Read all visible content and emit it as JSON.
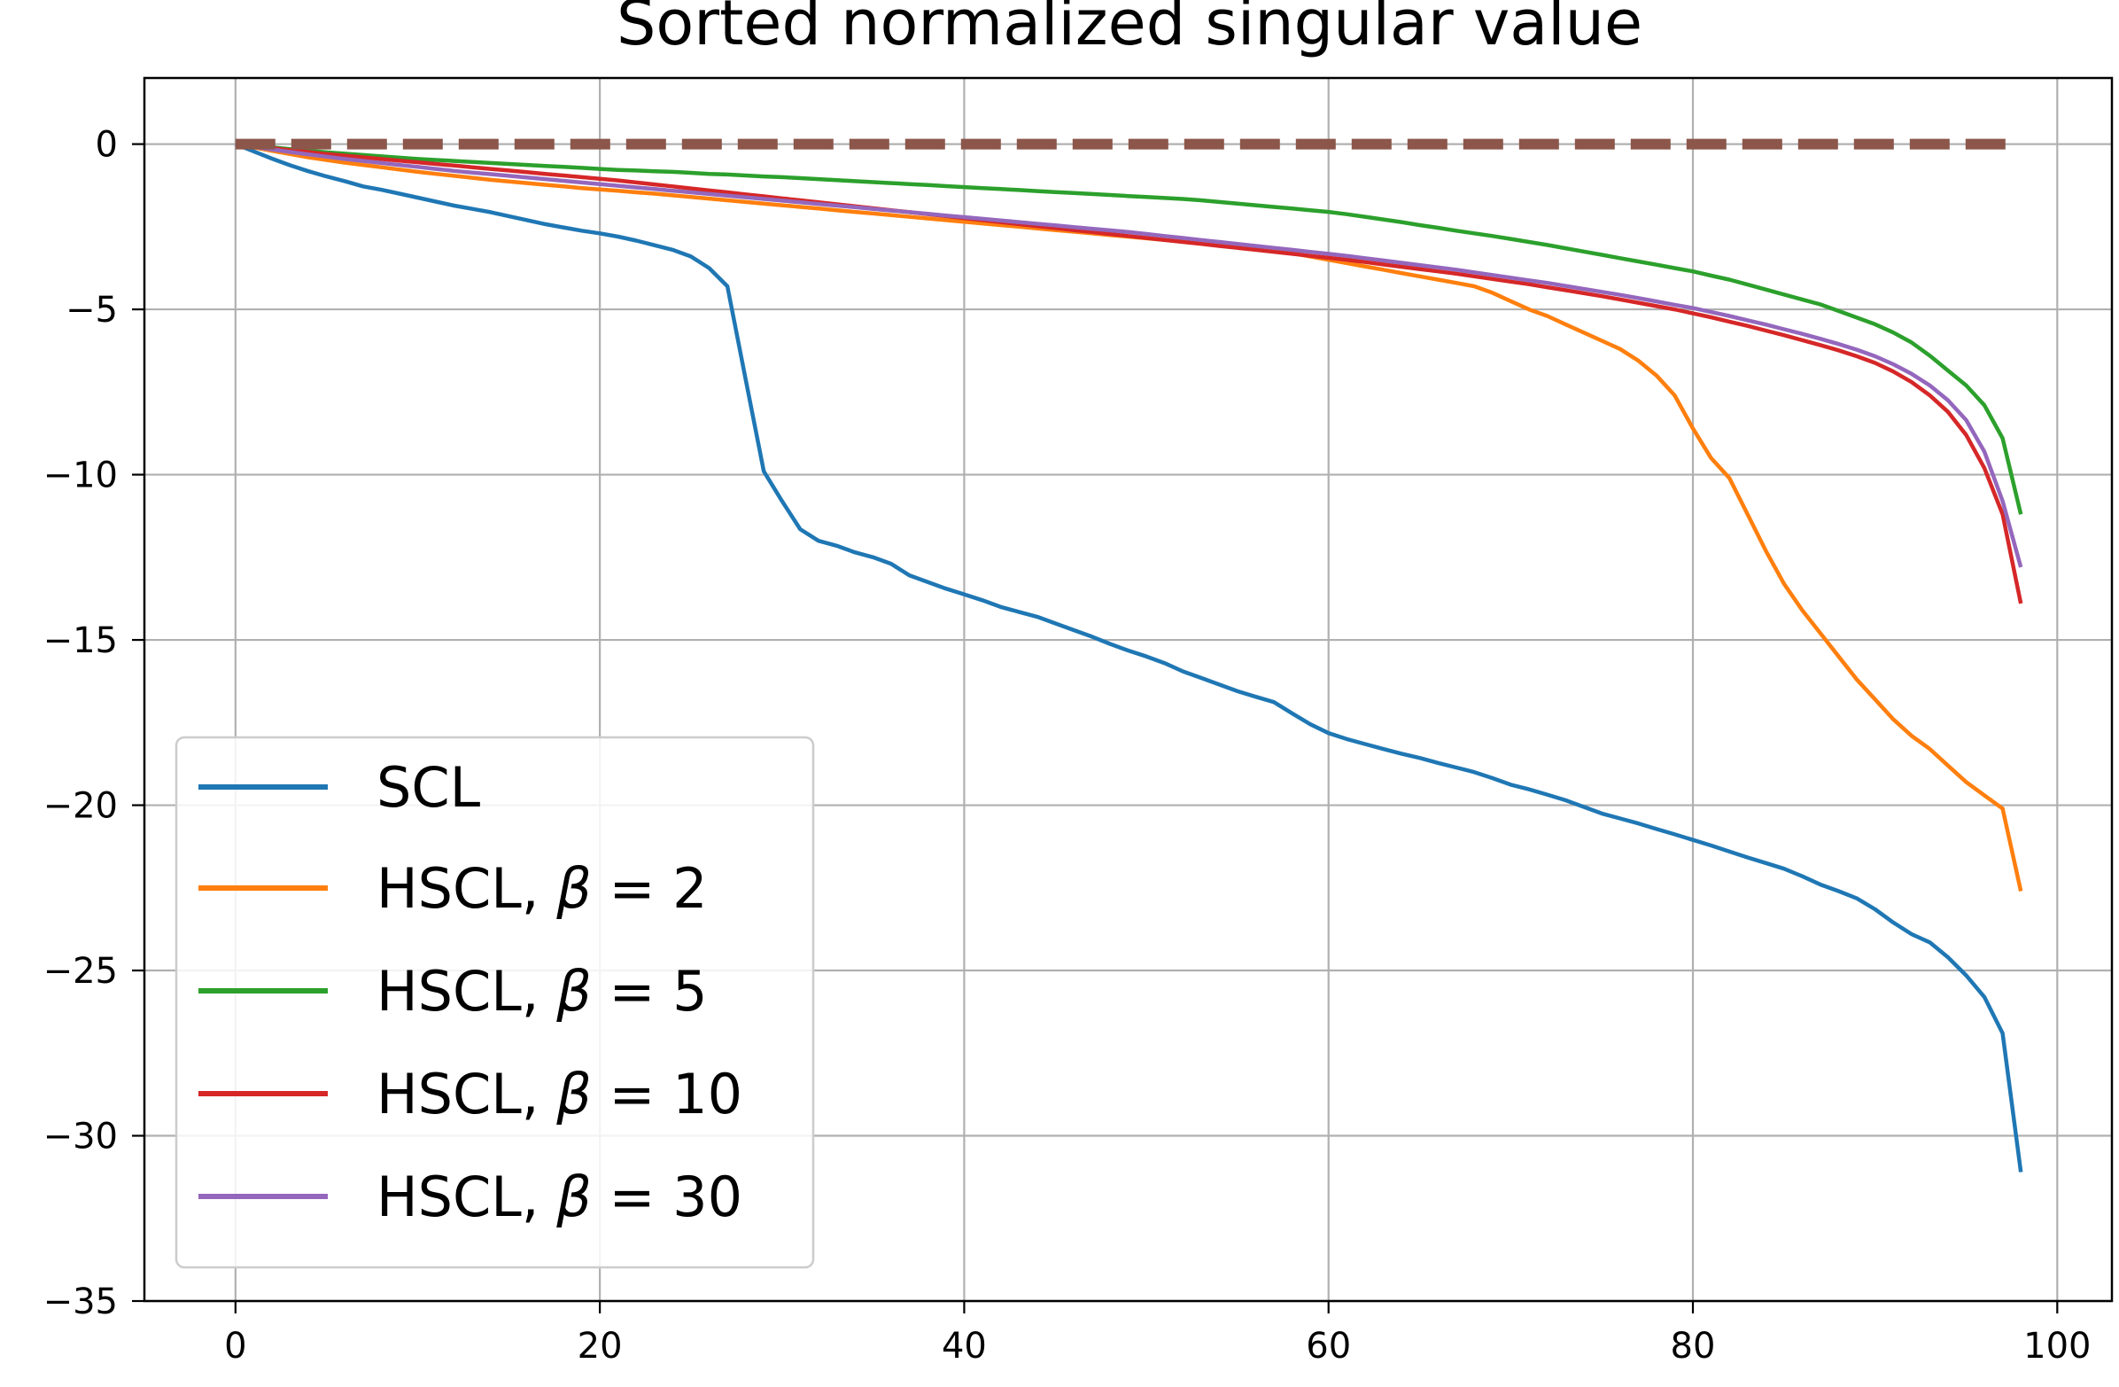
{
  "chart_data": {
    "type": "line",
    "title": "Sorted normalized singular value",
    "xlabel": "",
    "ylabel": "",
    "xlim": [
      -5,
      103
    ],
    "ylim": [
      -35,
      2
    ],
    "xticks": [
      0,
      20,
      40,
      60,
      80,
      100
    ],
    "yticks": [
      0,
      -5,
      -10,
      -15,
      -20,
      -25,
      -30,
      -35
    ],
    "grid": true,
    "legend_position": "lower-left",
    "x": [
      0,
      1,
      2,
      3,
      4,
      5,
      6,
      7,
      8,
      9,
      10,
      11,
      12,
      13,
      14,
      15,
      16,
      17,
      18,
      19,
      20,
      21,
      22,
      23,
      24,
      25,
      26,
      27,
      28,
      29,
      30,
      31,
      32,
      33,
      34,
      35,
      36,
      37,
      38,
      39,
      40,
      41,
      42,
      43,
      44,
      45,
      46,
      47,
      48,
      49,
      50,
      51,
      52,
      53,
      54,
      55,
      56,
      57,
      58,
      59,
      60,
      61,
      62,
      63,
      64,
      65,
      66,
      67,
      68,
      69,
      70,
      71,
      72,
      73,
      74,
      75,
      76,
      77,
      78,
      79,
      80,
      81,
      82,
      83,
      84,
      85,
      86,
      87,
      88,
      89,
      90,
      91,
      92,
      93,
      94,
      95,
      96,
      97,
      98
    ],
    "series": [
      {
        "name": "SCL",
        "color": "#1f77b4",
        "style": "solid",
        "values": [
          0,
          -0.22,
          -0.44,
          -0.64,
          -0.82,
          -0.98,
          -1.12,
          -1.28,
          -1.38,
          -1.5,
          -1.62,
          -1.74,
          -1.86,
          -1.96,
          -2.06,
          -2.18,
          -2.3,
          -2.42,
          -2.52,
          -2.62,
          -2.7,
          -2.8,
          -2.92,
          -3.06,
          -3.2,
          -3.4,
          -3.75,
          -4.3,
          -7.1,
          -9.9,
          -10.8,
          -11.65,
          -12.0,
          -12.15,
          -12.35,
          -12.5,
          -12.7,
          -13.05,
          -13.25,
          -13.45,
          -13.62,
          -13.8,
          -14.0,
          -14.15,
          -14.3,
          -14.5,
          -14.7,
          -14.9,
          -15.12,
          -15.32,
          -15.5,
          -15.7,
          -15.95,
          -16.15,
          -16.35,
          -16.55,
          -16.72,
          -16.88,
          -17.22,
          -17.55,
          -17.82,
          -18.0,
          -18.15,
          -18.3,
          -18.44,
          -18.57,
          -18.72,
          -18.86,
          -19.0,
          -19.18,
          -19.38,
          -19.52,
          -19.68,
          -19.85,
          -20.05,
          -20.25,
          -20.4,
          -20.55,
          -20.72,
          -20.88,
          -21.05,
          -21.22,
          -21.4,
          -21.58,
          -21.75,
          -21.92,
          -22.15,
          -22.4,
          -22.6,
          -22.82,
          -23.15,
          -23.55,
          -23.9,
          -24.15,
          -24.6,
          -25.15,
          -25.8,
          -26.9,
          -31.1
        ]
      },
      {
        "name": "HSCL, β = 2",
        "color": "#ff7f0e",
        "style": "solid",
        "values": [
          0,
          -0.1,
          -0.2,
          -0.3,
          -0.4,
          -0.48,
          -0.56,
          -0.63,
          -0.7,
          -0.77,
          -0.84,
          -0.9,
          -0.96,
          -1.02,
          -1.08,
          -1.13,
          -1.18,
          -1.23,
          -1.28,
          -1.33,
          -1.37,
          -1.41,
          -1.46,
          -1.5,
          -1.55,
          -1.6,
          -1.65,
          -1.7,
          -1.75,
          -1.8,
          -1.85,
          -1.9,
          -1.95,
          -2.0,
          -2.05,
          -2.1,
          -2.15,
          -2.2,
          -2.25,
          -2.3,
          -2.35,
          -2.4,
          -2.45,
          -2.5,
          -2.55,
          -2.6,
          -2.65,
          -2.7,
          -2.75,
          -2.8,
          -2.85,
          -2.9,
          -2.95,
          -3.0,
          -3.05,
          -3.1,
          -3.15,
          -3.2,
          -3.3,
          -3.4,
          -3.5,
          -3.6,
          -3.7,
          -3.8,
          -3.9,
          -4.0,
          -4.1,
          -4.2,
          -4.3,
          -4.5,
          -4.75,
          -5.0,
          -5.2,
          -5.45,
          -5.7,
          -5.95,
          -6.2,
          -6.55,
          -7.0,
          -7.6,
          -8.6,
          -9.5,
          -10.1,
          -11.2,
          -12.3,
          -13.3,
          -14.1,
          -14.8,
          -15.5,
          -16.2,
          -16.8,
          -17.4,
          -17.9,
          -18.3,
          -18.8,
          -19.3,
          -19.7,
          -20.1,
          -22.6
        ]
      },
      {
        "name": "HSCL, β = 5",
        "color": "#2ca02c",
        "style": "solid",
        "values": [
          0,
          -0.05,
          -0.1,
          -0.15,
          -0.2,
          -0.25,
          -0.29,
          -0.33,
          -0.37,
          -0.41,
          -0.45,
          -0.48,
          -0.51,
          -0.54,
          -0.57,
          -0.6,
          -0.63,
          -0.66,
          -0.69,
          -0.72,
          -0.75,
          -0.78,
          -0.8,
          -0.82,
          -0.84,
          -0.87,
          -0.9,
          -0.92,
          -0.95,
          -0.98,
          -1.0,
          -1.03,
          -1.06,
          -1.09,
          -1.12,
          -1.15,
          -1.18,
          -1.21,
          -1.24,
          -1.27,
          -1.3,
          -1.33,
          -1.36,
          -1.39,
          -1.42,
          -1.45,
          -1.48,
          -1.51,
          -1.54,
          -1.57,
          -1.6,
          -1.63,
          -1.66,
          -1.7,
          -1.75,
          -1.8,
          -1.85,
          -1.9,
          -1.95,
          -2.0,
          -2.05,
          -2.12,
          -2.2,
          -2.28,
          -2.36,
          -2.45,
          -2.53,
          -2.62,
          -2.7,
          -2.78,
          -2.87,
          -2.96,
          -3.05,
          -3.15,
          -3.25,
          -3.35,
          -3.45,
          -3.55,
          -3.65,
          -3.75,
          -3.85,
          -3.98,
          -4.1,
          -4.25,
          -4.4,
          -4.55,
          -4.7,
          -4.85,
          -5.05,
          -5.25,
          -5.45,
          -5.7,
          -6.0,
          -6.4,
          -6.85,
          -7.3,
          -7.9,
          -8.9,
          -11.2
        ]
      },
      {
        "name": "HSCL, β = 10",
        "color": "#d62728",
        "style": "solid",
        "values": [
          0,
          -0.06,
          -0.12,
          -0.18,
          -0.24,
          -0.3,
          -0.35,
          -0.4,
          -0.45,
          -0.5,
          -0.55,
          -0.6,
          -0.65,
          -0.7,
          -0.75,
          -0.8,
          -0.85,
          -0.9,
          -0.95,
          -1.0,
          -1.05,
          -1.1,
          -1.16,
          -1.22,
          -1.28,
          -1.34,
          -1.4,
          -1.46,
          -1.52,
          -1.58,
          -1.64,
          -1.7,
          -1.76,
          -1.82,
          -1.88,
          -1.94,
          -2.0,
          -2.06,
          -2.12,
          -2.18,
          -2.24,
          -2.3,
          -2.36,
          -2.42,
          -2.48,
          -2.54,
          -2.6,
          -2.66,
          -2.72,
          -2.78,
          -2.84,
          -2.9,
          -2.96,
          -3.02,
          -3.08,
          -3.14,
          -3.2,
          -3.26,
          -3.32,
          -3.38,
          -3.44,
          -3.5,
          -3.57,
          -3.64,
          -3.71,
          -3.78,
          -3.85,
          -3.92,
          -4.0,
          -4.08,
          -4.16,
          -4.24,
          -4.33,
          -4.42,
          -4.51,
          -4.6,
          -4.7,
          -4.8,
          -4.9,
          -5.0,
          -5.12,
          -5.24,
          -5.37,
          -5.5,
          -5.64,
          -5.78,
          -5.93,
          -6.08,
          -6.24,
          -6.42,
          -6.62,
          -6.88,
          -7.2,
          -7.6,
          -8.1,
          -8.8,
          -9.8,
          -11.2,
          -13.9
        ]
      },
      {
        "name": "HSCL, β = 30",
        "color": "#9467bd",
        "style": "solid",
        "values": [
          0,
          -0.08,
          -0.16,
          -0.24,
          -0.31,
          -0.38,
          -0.45,
          -0.51,
          -0.57,
          -0.63,
          -0.69,
          -0.75,
          -0.81,
          -0.86,
          -0.91,
          -0.96,
          -1.01,
          -1.06,
          -1.11,
          -1.16,
          -1.21,
          -1.26,
          -1.31,
          -1.36,
          -1.41,
          -1.46,
          -1.51,
          -1.56,
          -1.61,
          -1.66,
          -1.71,
          -1.76,
          -1.81,
          -1.86,
          -1.91,
          -1.96,
          -2.01,
          -2.06,
          -2.11,
          -2.16,
          -2.21,
          -2.26,
          -2.31,
          -2.36,
          -2.41,
          -2.46,
          -2.51,
          -2.56,
          -2.61,
          -2.66,
          -2.72,
          -2.78,
          -2.84,
          -2.9,
          -2.96,
          -3.02,
          -3.08,
          -3.14,
          -3.2,
          -3.26,
          -3.32,
          -3.38,
          -3.45,
          -3.52,
          -3.59,
          -3.66,
          -3.73,
          -3.8,
          -3.88,
          -3.96,
          -4.04,
          -4.12,
          -4.2,
          -4.29,
          -4.38,
          -4.47,
          -4.56,
          -4.66,
          -4.76,
          -4.86,
          -4.96,
          -5.08,
          -5.2,
          -5.33,
          -5.46,
          -5.6,
          -5.74,
          -5.89,
          -6.05,
          -6.22,
          -6.42,
          -6.66,
          -6.95,
          -7.3,
          -7.75,
          -8.35,
          -9.3,
          -10.8,
          -12.8
        ]
      },
      {
        "name": "",
        "color": "#8c564b",
        "style": "dashed",
        "values": [
          0,
          0,
          0,
          0,
          0,
          0,
          0,
          0,
          0,
          0,
          0,
          0,
          0,
          0,
          0,
          0,
          0,
          0,
          0,
          0,
          0,
          0,
          0,
          0,
          0,
          0,
          0,
          0,
          0,
          0,
          0,
          0,
          0,
          0,
          0,
          0,
          0,
          0,
          0,
          0,
          0,
          0,
          0,
          0,
          0,
          0,
          0,
          0,
          0,
          0,
          0,
          0,
          0,
          0,
          0,
          0,
          0,
          0,
          0,
          0,
          0,
          0,
          0,
          0,
          0,
          0,
          0,
          0,
          0,
          0,
          0,
          0,
          0,
          0,
          0,
          0,
          0,
          0,
          0,
          0,
          0,
          0,
          0,
          0,
          0,
          0,
          0,
          0,
          0,
          0,
          0,
          0,
          0,
          0,
          0,
          0,
          0,
          0,
          0
        ]
      }
    ],
    "legend": [
      {
        "label": "SCL",
        "color": "#1f77b4"
      },
      {
        "label": "HSCL, ",
        "beta": "β",
        "eq": " = ",
        "value": "2",
        "color": "#ff7f0e"
      },
      {
        "label": "HSCL, ",
        "beta": "β",
        "eq": " = ",
        "value": "5",
        "color": "#2ca02c"
      },
      {
        "label": "HSCL, ",
        "beta": "β",
        "eq": " = ",
        "value": "10",
        "color": "#d62728"
      },
      {
        "label": "HSCL, ",
        "beta": "β",
        "eq": " = ",
        "value": "30",
        "color": "#9467bd"
      }
    ]
  }
}
